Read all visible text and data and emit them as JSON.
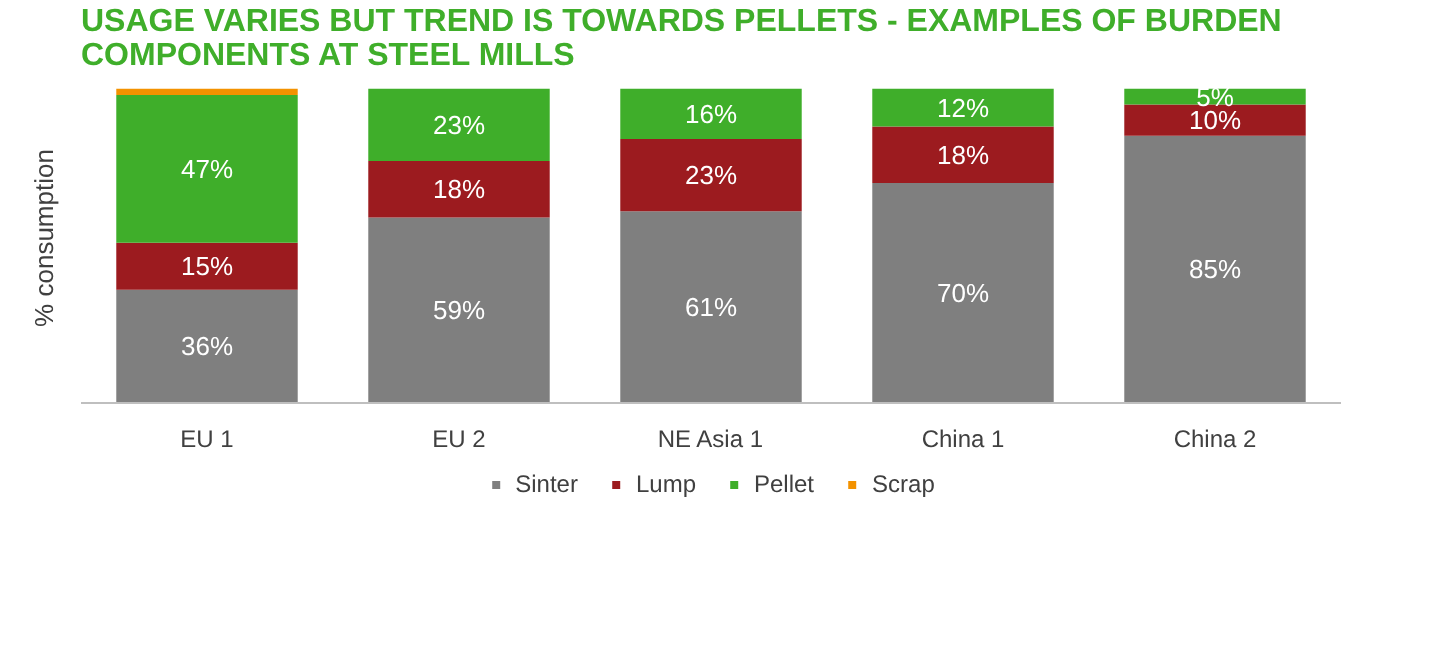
{
  "chart_data": {
    "type": "bar",
    "stacked": true,
    "title": "USAGE VARIES BUT TREND IS TOWARDS PELLETS - EXAMPLES OF BURDEN COMPONENTS AT STEEL MILLS",
    "ylabel": "% consumption",
    "categories": [
      "EU 1",
      "EU 2",
      "NE Asia 1",
      "China 1",
      "China 2"
    ],
    "series": [
      {
        "name": "Sinter",
        "color": "#7f7f7f",
        "values": [
          36,
          59,
          61,
          70,
          85
        ],
        "value_labels": [
          "36%",
          "59%",
          "61%",
          "70%",
          "85%"
        ]
      },
      {
        "name": "Lump",
        "color": "#9c1b1f",
        "values": [
          15,
          18,
          23,
          18,
          10
        ],
        "value_labels": [
          "15%",
          "18%",
          "23%",
          "18%",
          "10%"
        ]
      },
      {
        "name": "Pellet",
        "color": "#3fae2a",
        "values": [
          47,
          23,
          16,
          12,
          5
        ],
        "value_labels": [
          "47%",
          "23%",
          "16%",
          "12%",
          "5%"
        ]
      },
      {
        "name": "Scrap",
        "color": "#f39200",
        "values": [
          2,
          0,
          0,
          0,
          0
        ],
        "value_labels": [
          null,
          null,
          null,
          null,
          null
        ]
      }
    ],
    "legend": "bottom"
  }
}
